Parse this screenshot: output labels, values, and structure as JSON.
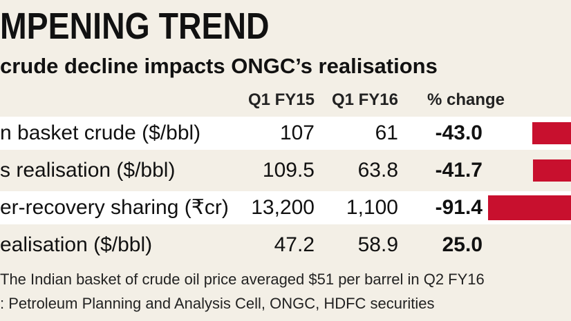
{
  "title": "MPENING TREND",
  "subtitle": "crude decline impacts ONGC’s realisations",
  "columns": {
    "q1fy15": "Q1 FY15",
    "q1fy16": "Q1 FY16",
    "change": "% change"
  },
  "rows": [
    {
      "label": "n basket crude ($/bbl)",
      "q1fy15": "107",
      "q1fy16": "61",
      "change": "-43.0",
      "change_value": -43.0
    },
    {
      "label": "s realisation ($/bbl)",
      "q1fy15": "109.5",
      "q1fy16": "63.8",
      "change": "-41.7",
      "change_value": -41.7
    },
    {
      "label": "er-recovery sharing (₹cr)",
      "q1fy15": "13,200",
      "q1fy16": "1,100",
      "change": "-91.4",
      "change_value": -91.4
    },
    {
      "label": "ealisation ($/bbl)",
      "q1fy15": "47.2",
      "q1fy16": "58.9",
      "change": "25.0",
      "change_value": 25.0
    }
  ],
  "notes": [
    "The Indian basket of crude oil price averaged $51 per barrel in Q2 FY16",
    ": Petroleum Planning and Analysis Cell, ONGC, HDFC securities"
  ],
  "colors": {
    "bar": "#c8102e",
    "background": "#f3efe6",
    "row_shade": "#ffffff"
  }
}
